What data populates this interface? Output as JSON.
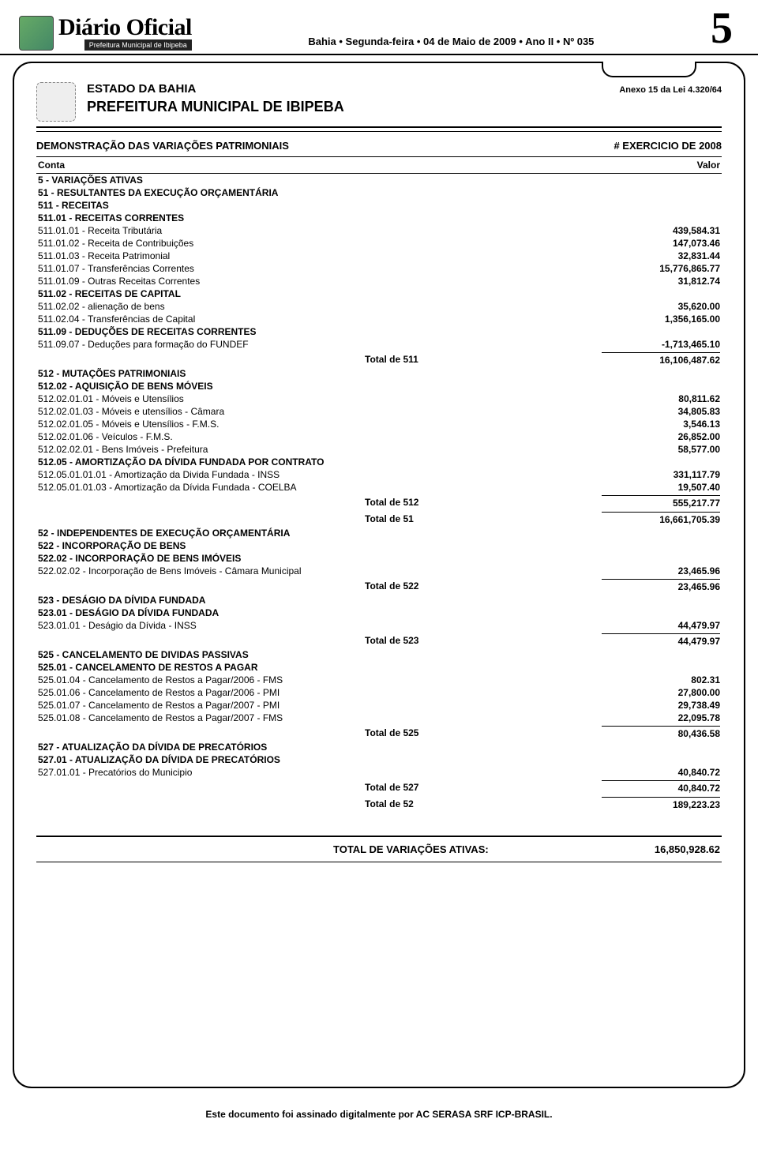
{
  "masthead": {
    "title": "Diário Oficial",
    "subtitle": "Prefeitura Municipal de Ibipeba",
    "dateline": "Bahia • Segunda-feira • 04 de Maio de 2009 • Ano II • Nº 035",
    "page": "5"
  },
  "header": {
    "state": "ESTADO DA BAHIA",
    "prefeitura": "PREFEITURA MUNICIPAL DE IBIPEBA",
    "anexo": "Anexo 15 da Lei 4.320/64",
    "demo_title": "DEMONSTRAÇÃO DAS VARIAÇÕES PATRIMONIAIS",
    "exercicio": "# EXERCICIO DE 2008",
    "col_conta": "Conta",
    "col_valor": "Valor"
  },
  "sections": [
    {
      "label": "5 - VARIAÇÕES ATIVAS",
      "bold": true
    },
    {
      "label": "51 - RESULTANTES DA EXECUÇÃO ORÇAMENTÁRIA",
      "bold": true
    },
    {
      "label": "511 - RECEITAS",
      "bold": true
    },
    {
      "label": "511.01 - RECEITAS CORRENTES",
      "bold": true
    },
    {
      "label": "511.01.01 - Receita Tributária",
      "val": "439,584.31"
    },
    {
      "label": "511.01.02 - Receita de Contribuições",
      "val": "147,073.46"
    },
    {
      "label": "511.01.03 - Receita Patrimonial",
      "val": "32,831.44"
    },
    {
      "label": "511.01.07 - Transferências Correntes",
      "val": "15,776,865.77"
    },
    {
      "label": "511.01.09 - Outras Receitas Correntes",
      "val": "31,812.74"
    },
    {
      "label": "511.02 - RECEITAS DE CAPITAL",
      "bold": true
    },
    {
      "label": "511.02.02 - alienação de bens",
      "val": "35,620.00"
    },
    {
      "label": "511.02.04 - Transferências de Capital",
      "val": "1,356,165.00"
    },
    {
      "label": "511.09 - DEDUÇÕES DE RECEITAS CORRENTES",
      "bold": true
    },
    {
      "label": "511.09.07 - Deduções para formação do FUNDEF",
      "val": "-1,713,465.10"
    },
    {
      "total": "Total de 511",
      "val": "16,106,487.62"
    },
    {
      "label": "512 - MUTAÇÕES PATRIMONIAIS",
      "bold": true
    },
    {
      "label": "512.02 - AQUISIÇÃO DE BENS MÓVEIS",
      "bold": true
    },
    {
      "label": "512.02.01.01 - Móveis e Utensílios",
      "val": "80,811.62"
    },
    {
      "label": "512.02.01.03 -  Móveis e utensílios - Câmara",
      "val": "34,805.83"
    },
    {
      "label": "512.02.01.05 - Móveis e Utensílios - F.M.S.",
      "val": "3,546.13"
    },
    {
      "label": "512.02.01.06 - Veículos  - F.M.S.",
      "val": "26,852.00"
    },
    {
      "label": "512.02.02.01 - Bens Imóveis - Prefeitura",
      "val": "58,577.00"
    },
    {
      "label": "512.05 - AMORTIZAÇÃO DA DÍVIDA FUNDADA POR CONTRATO",
      "bold": true
    },
    {
      "label": "512.05.01.01.01 - Amortização da Divida Fundada - INSS",
      "val": "331,117.79"
    },
    {
      "label": "512.05.01.01.03 - Amortização da Dívida Fundada - COELBA",
      "val": "19,507.40"
    },
    {
      "total": "Total de 512",
      "val": "555,217.77"
    },
    {
      "total": "Total de 51",
      "val": "16,661,705.39"
    },
    {
      "label": "52 - INDEPENDENTES DE EXECUÇÃO ORÇAMENTÁRIA",
      "bold": true
    },
    {
      "label": "522 - INCORPORAÇÃO DE BENS",
      "bold": true
    },
    {
      "label": "522.02 - INCORPORAÇÃO DE BENS IMÓVEIS",
      "bold": true
    },
    {
      "label": "522.02.02 - Incorporação de Bens Imóveis - Câmara Municipal",
      "val": "23,465.96"
    },
    {
      "total": "Total de 522",
      "val": "23,465.96"
    },
    {
      "label": "523 - DESÁGIO DA DÍVIDA FUNDADA",
      "bold": true
    },
    {
      "label": "523.01 - DESÁGIO DA DÍVIDA FUNDADA",
      "bold": true
    },
    {
      "label": "523.01.01 - Deságio da Dívida - INSS",
      "val": "44,479.97"
    },
    {
      "total": "Total de 523",
      "val": "44,479.97"
    },
    {
      "label": "525 - CANCELAMENTO DE DIVIDAS PASSIVAS",
      "bold": true
    },
    {
      "label": "525.01 - CANCELAMENTO DE RESTOS A PAGAR",
      "bold": true
    },
    {
      "label": "525.01.04 - Cancelamento de Restos a Pagar/2006 - FMS",
      "val": "802.31"
    },
    {
      "label": "525.01.06 - Cancelamento de Restos a Pagar/2006 - PMI",
      "val": "27,800.00"
    },
    {
      "label": "525.01.07 - Cancelamento de Restos a Pagar/2007 - PMI",
      "val": "29,738.49"
    },
    {
      "label": "525.01.08 - Cancelamento de Restos a Pagar/2007 - FMS",
      "val": "22,095.78"
    },
    {
      "total": "Total de 525",
      "val": "80,436.58"
    },
    {
      "label": "527 - ATUALIZAÇÃO DA DÍVIDA DE PRECATÓRIOS",
      "bold": true
    },
    {
      "label": "527.01 - ATUALIZAÇÃO DA DÍVIDA DE PRECATÓRIOS",
      "bold": true
    },
    {
      "label": "527.01.01 - Precatórios do Municipio",
      "val": "40,840.72"
    },
    {
      "total": "Total de 527",
      "val": "40,840.72"
    },
    {
      "total": "Total de 52",
      "val": "189,223.23"
    }
  ],
  "grand": {
    "label": "TOTAL DE VARIAÇÕES ATIVAS:",
    "val": "16,850,928.62"
  },
  "footer": "Este documento foi assinado digitalmente por AC SERASA SRF ICP-BRASIL."
}
